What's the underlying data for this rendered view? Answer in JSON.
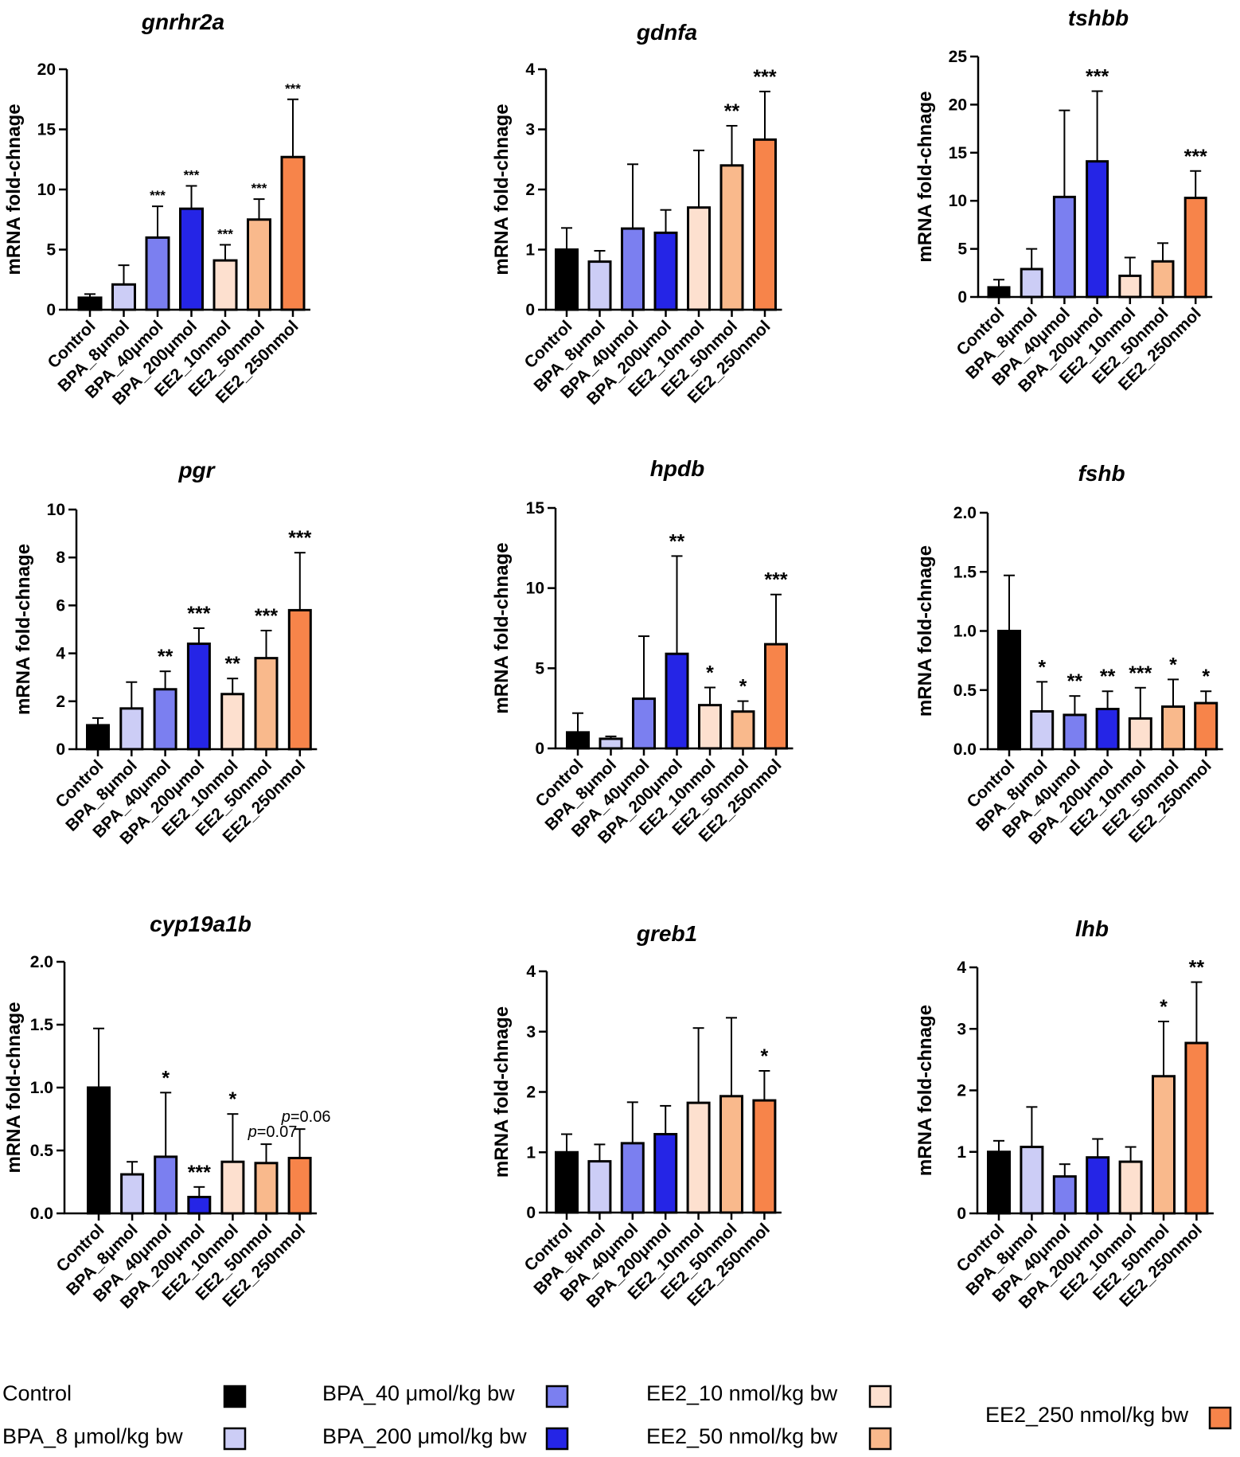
{
  "y_axis_label": "mRNA fold-chnage",
  "legend": [
    {
      "label": "Control",
      "color": "#000000"
    },
    {
      "label": "BPA_8 μmol/kg bw",
      "color": "#cccdf6"
    },
    {
      "label": "BPA_40 μmol/kg bw",
      "color": "#7b7ff0"
    },
    {
      "label": "BPA_200 μmol/kg bw",
      "color": "#2525e6"
    },
    {
      "label": "EE2_10 nmol/kg bw",
      "color": "#fde0cf"
    },
    {
      "label": "EE2_50 nmol/kg bw",
      "color": "#f9b98c"
    },
    {
      "label": "EE2_250 nmol/kg bw",
      "color": "#f7844a"
    }
  ],
  "chart_data": [
    {
      "type": "bar",
      "title": "gnrhr2a",
      "ylabel": "mRNA fold-chnage",
      "categories": [
        "Control",
        "BPA_8μmol",
        "BPA_40μmol",
        "BPA_200μmol",
        "EE2_10nmol",
        "EE2_50nmol",
        "EE2_250nmol"
      ],
      "yticks": [
        "0",
        "5",
        "10",
        "15",
        "20"
      ],
      "ylim": [
        0,
        20
      ],
      "values": [
        1.0,
        2.1,
        6.0,
        8.4,
        4.1,
        7.5,
        12.7
      ],
      "errors": [
        0.3,
        1.6,
        2.6,
        1.9,
        1.3,
        1.7,
        4.8
      ],
      "significance": [
        "",
        "",
        "***",
        "***",
        "***",
        "***",
        "***"
      ]
    },
    {
      "type": "bar",
      "title": "gdnfa",
      "ylabel": "mRNA fold-chnage",
      "categories": [
        "Control",
        "BPA_8μmol",
        "BPA_40μmol",
        "BPA_200μmol",
        "EE2_10nmol",
        "EE2_50nmol",
        "EE2_250nmol"
      ],
      "yticks": [
        "0",
        "1",
        "2",
        "3",
        "4"
      ],
      "ylim": [
        0,
        4
      ],
      "values": [
        1.0,
        0.8,
        1.35,
        1.28,
        1.7,
        2.4,
        2.83
      ],
      "errors": [
        0.36,
        0.18,
        1.07,
        0.38,
        0.95,
        0.66,
        0.8
      ],
      "significance": [
        "",
        "",
        "",
        "",
        "",
        "**",
        "***"
      ]
    },
    {
      "type": "bar",
      "title": "tshbb",
      "ylabel": "mRNA fold-chnage",
      "categories": [
        "Control",
        "BPA_8μmol",
        "BPA_40μmol",
        "BPA_200μmol",
        "EE2_10nmol",
        "EE2_50nmol",
        "EE2_250nmol"
      ],
      "yticks": [
        "0",
        "5",
        "10",
        "15",
        "20",
        "25"
      ],
      "ylim": [
        0,
        25
      ],
      "values": [
        1.0,
        2.9,
        10.4,
        14.1,
        2.2,
        3.7,
        10.3
      ],
      "errors": [
        0.8,
        2.1,
        9.0,
        7.3,
        1.9,
        1.9,
        2.8
      ],
      "significance": [
        "",
        "",
        "",
        "***",
        "",
        "",
        "***"
      ]
    },
    {
      "type": "bar",
      "title": "pgr",
      "ylabel": "mRNA fold-chnage",
      "categories": [
        "Control",
        "BPA_8μmol",
        "BPA_40μmol",
        "BPA_200μmol",
        "EE2_10nmol",
        "EE2_50nmol",
        "EE2_250nmol"
      ],
      "yticks": [
        "0",
        "2",
        "4",
        "6",
        "8",
        "10"
      ],
      "ylim": [
        0,
        10
      ],
      "values": [
        1.0,
        1.7,
        2.5,
        4.4,
        2.3,
        3.8,
        5.8
      ],
      "errors": [
        0.3,
        1.1,
        0.75,
        0.65,
        0.65,
        1.15,
        2.4
      ],
      "significance": [
        "",
        "",
        "**",
        "***",
        "**",
        "***",
        "***"
      ]
    },
    {
      "type": "bar",
      "title": "hpdb",
      "ylabel": "mRNA fold-chnage",
      "categories": [
        "Control",
        "BPA_8μmol",
        "BPA_40μmol",
        "BPA_200μmol",
        "EE2_10nmol",
        "EE2_50nmol",
        "EE2_250nmol"
      ],
      "yticks": [
        "0",
        "5",
        "10",
        "15"
      ],
      "ylim": [
        0,
        15
      ],
      "values": [
        1.0,
        0.6,
        3.1,
        5.9,
        2.7,
        2.3,
        6.5
      ],
      "errors": [
        1.2,
        0.15,
        3.9,
        6.1,
        1.1,
        0.65,
        3.1
      ],
      "significance": [
        "",
        "",
        "",
        "**",
        "*",
        "*",
        "***"
      ]
    },
    {
      "type": "bar",
      "title": "fshb",
      "ylabel": "mRNA fold-chnage",
      "categories": [
        "Control",
        "BPA_8μmol",
        "BPA_40μmol",
        "BPA_200μmol",
        "EE2_10nmol",
        "EE2_50nmol",
        "EE2_250nmol"
      ],
      "yticks": [
        "0.0",
        "0.5",
        "1.0",
        "1.5",
        "2.0"
      ],
      "ylim": [
        0,
        2
      ],
      "values": [
        1.0,
        0.32,
        0.29,
        0.34,
        0.26,
        0.36,
        0.39
      ],
      "errors": [
        0.47,
        0.25,
        0.16,
        0.15,
        0.26,
        0.23,
        0.1
      ],
      "significance": [
        "",
        "*",
        "**",
        "**",
        "***",
        "*",
        "*"
      ]
    },
    {
      "type": "bar",
      "title": "cyp19a1b",
      "ylabel": "mRNA fold-chnage",
      "categories": [
        "Control",
        "BPA_8μmol",
        "BPA_40μmol",
        "BPA_200μmol",
        "EE2_10nmol",
        "EE2_50nmol",
        "EE2_250nmol"
      ],
      "yticks": [
        "0.0",
        "0.5",
        "1.0",
        "1.5",
        "2.0"
      ],
      "ylim": [
        0,
        2
      ],
      "values": [
        1.0,
        0.31,
        0.45,
        0.13,
        0.41,
        0.4,
        0.44
      ],
      "errors": [
        0.47,
        0.1,
        0.51,
        0.08,
        0.38,
        0.15,
        0.23
      ],
      "significance": [
        "",
        "",
        "*",
        "***",
        "*",
        "p=0.07",
        "p=0.06"
      ]
    },
    {
      "type": "bar",
      "title": "greb1",
      "ylabel": "mRNA fold-chnage",
      "categories": [
        "Control",
        "BPA_8μmol",
        "BPA_40μmol",
        "BPA_200μmol",
        "EE2_10nmol",
        "EE2_50nmol",
        "EE2_250nmol"
      ],
      "yticks": [
        "0",
        "1",
        "2",
        "3",
        "4"
      ],
      "ylim": [
        0,
        4
      ],
      "values": [
        1.0,
        0.85,
        1.15,
        1.3,
        1.82,
        1.93,
        1.86
      ],
      "errors": [
        0.3,
        0.28,
        0.68,
        0.47,
        1.24,
        1.3,
        0.49
      ],
      "significance": [
        "",
        "",
        "",
        "",
        "",
        "",
        "*"
      ]
    },
    {
      "type": "bar",
      "title": "lhb",
      "ylabel": "mRNA fold-chnage",
      "categories": [
        "Control",
        "BPA_8μmol",
        "BPA_40μmol",
        "BPA_200μmol",
        "EE2_10nmol",
        "EE2_50nmol",
        "EE2_250nmol"
      ],
      "yticks": [
        "0",
        "1",
        "2",
        "3",
        "4"
      ],
      "ylim": [
        0,
        4
      ],
      "values": [
        1.0,
        1.08,
        0.6,
        0.91,
        0.84,
        2.23,
        2.77
      ],
      "errors": [
        0.18,
        0.65,
        0.2,
        0.3,
        0.24,
        0.89,
        0.99
      ],
      "significance": [
        "",
        "",
        "",
        "",
        "",
        "*",
        "**"
      ]
    }
  ]
}
